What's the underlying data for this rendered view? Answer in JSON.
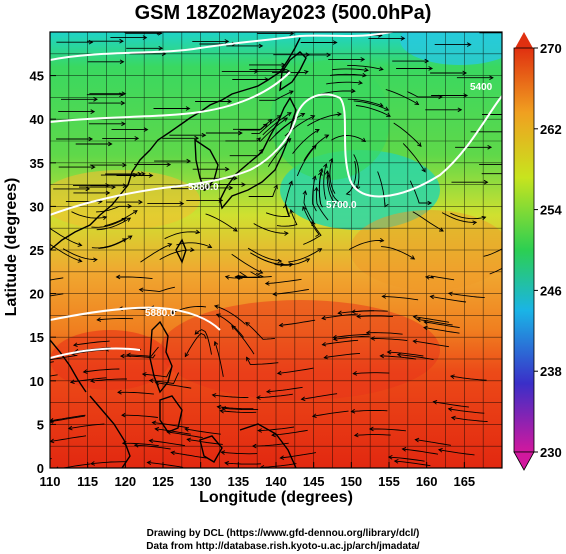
{
  "title": "GSM 18Z02May2023 (500.0hPa)",
  "xaxis_title": "Longitude (degrees)",
  "yaxis_title": "Latitude  (degrees)",
  "credits": {
    "line1": "Drawing by DCL (https://www.gfd-dennou.org/library/dcl/)",
    "line2": "Data from http://database.rish.kyoto-u.ac.jp/arch/jmadata/"
  },
  "map": {
    "lon_range": [
      110,
      170
    ],
    "lat_range": [
      0,
      50
    ],
    "x_ticks": [
      110,
      115,
      120,
      125,
      130,
      135,
      140,
      145,
      150,
      155,
      160,
      165
    ],
    "y_ticks": [
      0,
      5,
      10,
      15,
      20,
      25,
      30,
      35,
      40,
      45
    ],
    "grid": true,
    "shading": "temperature (K)",
    "vectors": "wind streamlines",
    "contour_labels": [
      "5880.0",
      "5700.0",
      "5880.0",
      "5700.0",
      "5400"
    ]
  },
  "colorbar": {
    "range": [
      230,
      270
    ],
    "ticks": [
      230,
      238,
      246,
      254,
      262,
      270
    ],
    "colors": [
      "#d2189e",
      "#3a2fc8",
      "#1ab4e6",
      "#2ccf52",
      "#c8e41e",
      "#f0a020",
      "#e03010"
    ]
  }
}
